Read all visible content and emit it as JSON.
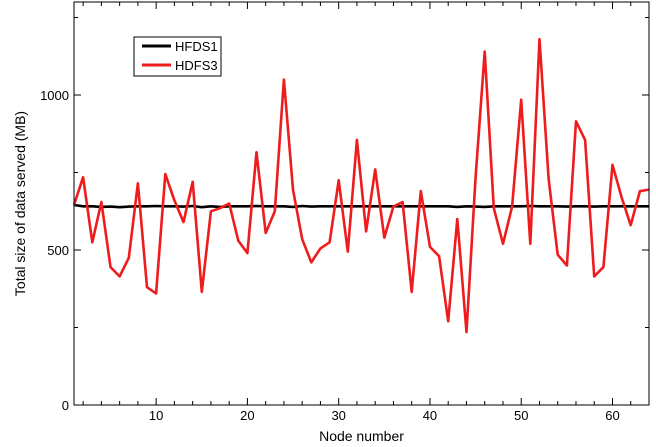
{
  "chart_data": {
    "type": "line",
    "title": "",
    "xlabel": "Node number",
    "ylabel": "Total size of data served (MB)",
    "xlim": [
      1,
      64
    ],
    "ylim": [
      0,
      1300
    ],
    "xticks": [
      10,
      20,
      30,
      40,
      50,
      60
    ],
    "yticks": [
      0,
      500,
      1000
    ],
    "grid": false,
    "legend_position": "top-left",
    "x": [
      1,
      2,
      3,
      4,
      5,
      6,
      7,
      8,
      9,
      10,
      11,
      12,
      13,
      14,
      15,
      16,
      17,
      18,
      19,
      20,
      21,
      22,
      23,
      24,
      25,
      26,
      27,
      28,
      29,
      30,
      31,
      32,
      33,
      34,
      35,
      36,
      37,
      38,
      39,
      40,
      41,
      42,
      43,
      44,
      45,
      46,
      47,
      48,
      49,
      50,
      51,
      52,
      53,
      54,
      55,
      56,
      57,
      58,
      59,
      60,
      61,
      62,
      63,
      64
    ],
    "series": [
      {
        "name": "HFDS1",
        "color": "#000000",
        "values": [
          645,
          641,
          641,
          639,
          640,
          638,
          640,
          641,
          641,
          642,
          641,
          641,
          640,
          642,
          638,
          641,
          639,
          641,
          641,
          641,
          642,
          641,
          641,
          641,
          639,
          642,
          640,
          641,
          641,
          641,
          641,
          641,
          641,
          641,
          641,
          641,
          641,
          641,
          641,
          641,
          641,
          641,
          639,
          641,
          640,
          639,
          641,
          641,
          641,
          641,
          642,
          641,
          641,
          641,
          640,
          641,
          641,
          640,
          641,
          641,
          641,
          641,
          641,
          641
        ]
      },
      {
        "name": "HDFS3",
        "color": "#ee1c1c",
        "values": [
          645,
          735,
          525,
          655,
          445,
          415,
          475,
          715,
          380,
          360,
          745,
          660,
          590,
          720,
          365,
          625,
          635,
          650,
          530,
          490,
          815,
          555,
          625,
          1050,
          695,
          535,
          460,
          505,
          525,
          725,
          495,
          855,
          560,
          760,
          540,
          640,
          655,
          365,
          690,
          510,
          480,
          270,
          600,
          235,
          735,
          1140,
          635,
          520,
          640,
          985,
          520,
          1180,
          730,
          485,
          450,
          915,
          855,
          415,
          445,
          775,
          670,
          580,
          690,
          695
        ]
      }
    ]
  }
}
